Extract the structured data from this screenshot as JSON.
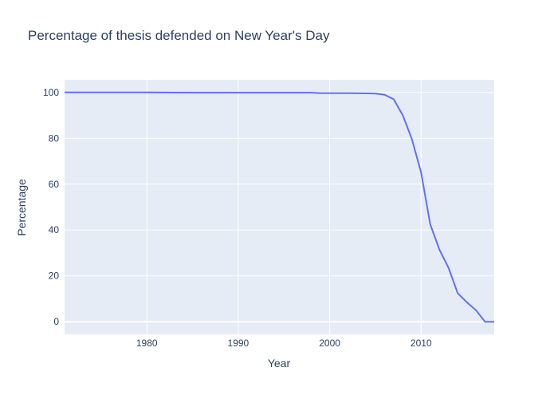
{
  "chart_data": {
    "type": "line",
    "title": "Percentage of thesis defended on New Year's Day",
    "xlabel": "Year",
    "ylabel": "Percentage",
    "xlim": [
      1971,
      2018
    ],
    "ylim": [
      -5.5,
      105.5
    ],
    "x_ticks": [
      1980,
      1990,
      2000,
      2010
    ],
    "y_ticks": [
      0,
      20,
      40,
      60,
      80,
      100
    ],
    "grid": true,
    "colors": {
      "plot_bg": "#e5ecf6",
      "grid": "#ffffff",
      "line": "#636efa",
      "text": "#2a3f5f"
    },
    "series": [
      {
        "x": [
          1971,
          1975,
          1980,
          1985,
          1990,
          1995,
          1998,
          1999,
          2000,
          2002,
          2004,
          2005,
          2006,
          2007,
          2008,
          2009,
          2010,
          2011,
          2012,
          2013,
          2014,
          2015,
          2016,
          2017,
          2018
        ],
        "y": [
          100,
          100,
          100,
          99.9,
          99.9,
          99.9,
          99.9,
          99.7,
          99.7,
          99.7,
          99.6,
          99.5,
          99.0,
          97.0,
          90.0,
          79.5,
          65.0,
          42.5,
          31.5,
          23.5,
          12.5,
          8.5,
          5.0,
          0.0,
          0.0
        ]
      }
    ]
  }
}
